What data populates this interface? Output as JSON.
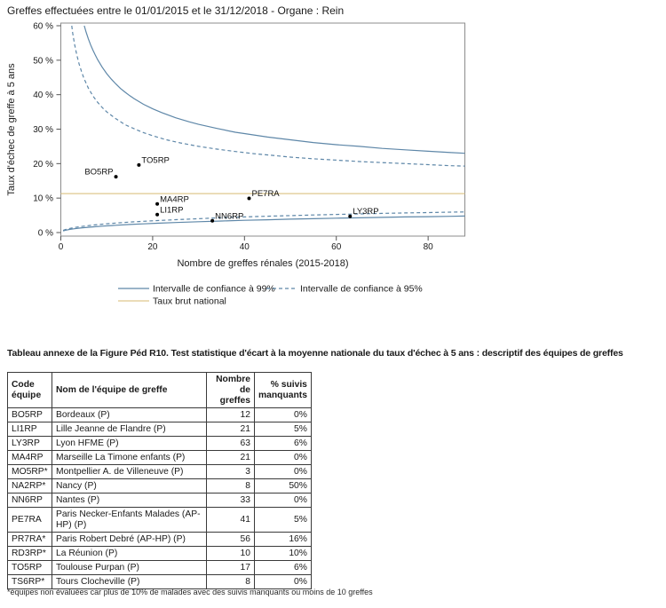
{
  "header": {
    "title": "Greffes effectuées entre le 01/01/2015 et le 31/12/2018 - Organe : Rein"
  },
  "chart_data": {
    "type": "scatter",
    "subtype": "funnel-plot",
    "xlabel": "Nombre de greffes rénales (2015-2018)",
    "ylabel": "Taux d'échec de greffe à 5 ans",
    "xlim": [
      0,
      88
    ],
    "ylim": [
      0,
      60
    ],
    "x_ticks": [
      0,
      20,
      40,
      60,
      80
    ],
    "y_ticks": [
      0,
      10,
      20,
      30,
      40,
      50,
      60
    ],
    "y_tick_suffix": " %",
    "grid": false,
    "national_rate_pct": 11.3,
    "points": [
      {
        "team": "BO5RP",
        "n": 12,
        "failure_rate_pct": 16.2,
        "label_side": "left"
      },
      {
        "team": "TO5RP",
        "n": 17,
        "failure_rate_pct": 19.6,
        "label_side": "right"
      },
      {
        "team": "MA4RP",
        "n": 21,
        "failure_rate_pct": 8.3,
        "label_side": "right"
      },
      {
        "team": "LI1RP",
        "n": 21,
        "failure_rate_pct": 5.2,
        "label_side": "right"
      },
      {
        "team": "NN6RP",
        "n": 33,
        "failure_rate_pct": 3.4,
        "label_side": "right"
      },
      {
        "team": "PE7RA",
        "n": 41,
        "failure_rate_pct": 9.9,
        "label_side": "right"
      },
      {
        "team": "LY3RP",
        "n": 63,
        "failure_rate_pct": 4.7,
        "label_side": "right"
      }
    ],
    "curves": {
      "ci99_upper": [
        [
          5.1,
          60
        ],
        [
          5.5,
          58.2
        ],
        [
          6,
          56.2
        ],
        [
          6.5,
          54.4
        ],
        [
          7,
          52.9
        ],
        [
          7.5,
          51.5
        ],
        [
          8,
          50.2
        ],
        [
          9,
          48.0
        ],
        [
          10,
          46.1
        ],
        [
          11,
          44.5
        ],
        [
          12,
          43.1
        ],
        [
          13,
          41.8
        ],
        [
          14,
          40.7
        ],
        [
          15,
          39.7
        ],
        [
          16,
          38.8
        ],
        [
          18,
          37.2
        ],
        [
          20,
          35.9
        ],
        [
          22,
          34.8
        ],
        [
          25,
          33.3
        ],
        [
          28,
          32.1
        ],
        [
          30,
          31.4
        ],
        [
          34,
          30.2
        ],
        [
          38,
          29.1
        ],
        [
          40,
          28.7
        ],
        [
          45,
          27.7
        ],
        [
          50,
          26.9
        ],
        [
          55,
          26.1
        ],
        [
          60,
          25.5
        ],
        [
          65,
          25.0
        ],
        [
          70,
          24.4
        ],
        [
          75,
          24.0
        ],
        [
          80,
          23.6
        ],
        [
          85,
          23.2
        ],
        [
          88,
          23.0
        ]
      ],
      "ci95_upper": [
        [
          2.37,
          60
        ],
        [
          2.6,
          57.8
        ],
        [
          3,
          54.6
        ],
        [
          3.5,
          51.4
        ],
        [
          4,
          48.8
        ],
        [
          4.5,
          46.7
        ],
        [
          5,
          44.8
        ],
        [
          6,
          41.9
        ],
        [
          7,
          39.6
        ],
        [
          8,
          37.8
        ],
        [
          9,
          36.3
        ],
        [
          10,
          35.0
        ],
        [
          12,
          33.0
        ],
        [
          14,
          31.3
        ],
        [
          16,
          30.1
        ],
        [
          18,
          29.0
        ],
        [
          20,
          28.1
        ],
        [
          23,
          26.9
        ],
        [
          26,
          26.0
        ],
        [
          30,
          25.0
        ],
        [
          34,
          24.2
        ],
        [
          38,
          23.5
        ],
        [
          42,
          22.9
        ],
        [
          46,
          22.4
        ],
        [
          50,
          21.9
        ],
        [
          55,
          21.4
        ],
        [
          60,
          21.0
        ],
        [
          65,
          20.6
        ],
        [
          70,
          20.3
        ],
        [
          75,
          20.0
        ],
        [
          80,
          19.7
        ],
        [
          85,
          19.4
        ],
        [
          88,
          19.3
        ]
      ],
      "ci99_lower": [
        [
          0.5,
          0.47
        ],
        [
          1,
          0.66
        ],
        [
          2,
          0.92
        ],
        [
          3,
          1.11
        ],
        [
          4,
          1.28
        ],
        [
          5,
          1.42
        ],
        [
          7,
          1.66
        ],
        [
          9,
          1.86
        ],
        [
          12,
          2.12
        ],
        [
          15,
          2.34
        ],
        [
          18,
          2.53
        ],
        [
          21,
          2.7
        ],
        [
          25,
          2.91
        ],
        [
          30,
          3.15
        ],
        [
          35,
          3.36
        ],
        [
          40,
          3.55
        ],
        [
          45,
          3.72
        ],
        [
          50,
          3.88
        ],
        [
          55,
          4.02
        ],
        [
          60,
          4.16
        ],
        [
          65,
          4.28
        ],
        [
          70,
          4.4
        ],
        [
          75,
          4.52
        ],
        [
          80,
          4.62
        ],
        [
          85,
          4.72
        ],
        [
          88,
          4.78
        ]
      ],
      "ci95_lower": [
        [
          0.5,
          0.63
        ],
        [
          1,
          0.87
        ],
        [
          2,
          1.21
        ],
        [
          3,
          1.46
        ],
        [
          4,
          1.67
        ],
        [
          5,
          1.86
        ],
        [
          7,
          2.17
        ],
        [
          9,
          2.43
        ],
        [
          12,
          2.76
        ],
        [
          15,
          3.03
        ],
        [
          18,
          3.27
        ],
        [
          21,
          3.48
        ],
        [
          25,
          3.74
        ],
        [
          30,
          4.03
        ],
        [
          35,
          4.29
        ],
        [
          40,
          4.52
        ],
        [
          45,
          4.73
        ],
        [
          50,
          4.92
        ],
        [
          55,
          5.1
        ],
        [
          60,
          5.26
        ],
        [
          65,
          5.41
        ],
        [
          70,
          5.55
        ],
        [
          75,
          5.68
        ],
        [
          80,
          5.8
        ],
        [
          85,
          5.92
        ],
        [
          88,
          5.98
        ]
      ]
    },
    "legend": [
      {
        "label": "Intervalle de confiance à 99%",
        "style": "solid"
      },
      {
        "label": "Intervalle de confiance à 95%",
        "style": "dashed"
      },
      {
        "label": "Taux brut national",
        "style": "gold"
      }
    ],
    "legend_position": "bottom",
    "colors": {
      "ci_line": "#5e87a8",
      "national_line": "#dfc88e",
      "point": "#000000",
      "frame": "#8c8c8c",
      "tick": "#555555",
      "text": "#1a1a1a"
    }
  },
  "table": {
    "title": "Tableau annexe de la Figure Péd R10. Test statistique d'écart à la moyenne nationale du taux d'échec à 5 ans : descriptif des équipes de greffes",
    "columns": [
      {
        "label": "Code équipe"
      },
      {
        "label": "Nom de l'équipe de greffe"
      },
      {
        "label": "Nombre de greffes"
      },
      {
        "label": "% suivis manquants"
      }
    ],
    "rows": [
      [
        "BO5RP",
        "Bordeaux (P)",
        "12",
        "0%"
      ],
      [
        "LI1RP",
        "Lille Jeanne de Flandre (P)",
        "21",
        "5%"
      ],
      [
        "LY3RP",
        "Lyon HFME (P)",
        "63",
        "6%"
      ],
      [
        "MA4RP",
        "Marseille La Timone enfants (P)",
        "21",
        "0%"
      ],
      [
        "MO5RP*",
        "Montpellier A. de Villeneuve (P)",
        "3",
        "0%"
      ],
      [
        "NA2RP*",
        "Nancy (P)",
        "8",
        "50%"
      ],
      [
        "NN6RP",
        "Nantes (P)",
        "33",
        "0%"
      ],
      [
        "PE7RA",
        "Paris Necker-Enfants Malades (AP-HP) (P)",
        "41",
        "5%"
      ],
      [
        "PR7RA*",
        "Paris Robert Debré (AP-HP) (P)",
        "56",
        "16%"
      ],
      [
        "RD3RP*",
        "La Réunion (P)",
        "10",
        "10%"
      ],
      [
        "TO5RP",
        "Toulouse Purpan (P)",
        "17",
        "6%"
      ],
      [
        "TS6RP*",
        "Tours Clocheville (P)",
        "8",
        "0%"
      ]
    ],
    "footnote": "*équipes non évaluées car plus de 10% de malades avec des suivis manquants ou moins de 10 greffes"
  }
}
